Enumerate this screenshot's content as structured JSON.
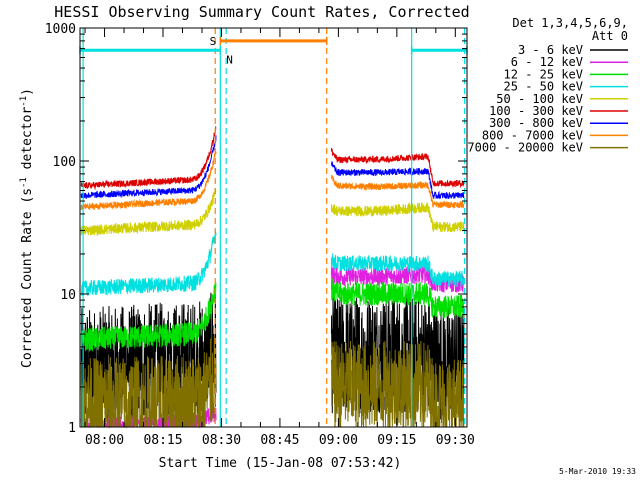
{
  "chart_data": {
    "type": "line",
    "title": "HESSI Observing Summary Count Rates, Corrected",
    "xlabel": "Start Time (15-Jan-08 07:53:42)",
    "ylabel_main": "Corrected Count Rate (s",
    "ylabel_sup1": "-1",
    "ylabel_mid": " detector",
    "ylabel_sup2": "-1",
    "ylabel_end": ")",
    "yscale": "log",
    "ylim": [
      1,
      1000
    ],
    "xlim_min": [
      473.7,
      573.0
    ],
    "xticks_min": [
      480,
      495,
      510,
      525,
      540,
      555,
      570
    ],
    "xtick_labels": [
      "08:00",
      "08:15",
      "08:30",
      "08:45",
      "09:00",
      "09:15",
      "09:30"
    ],
    "yticks": [
      1,
      10,
      100,
      1000
    ],
    "ytick_labels": [
      "1",
      "10",
      "100",
      "1000"
    ],
    "legend_header": [
      "Det 1,3,4,5,6,9,",
      "Att 0"
    ],
    "legend_position": "right-outside",
    "series": [
      {
        "name": "3 - 6 keV",
        "color": "#000000",
        "pre": [
          2.8,
          3.2,
          4.0
        ],
        "post": [
          3.5,
          3.5,
          3.6,
          3.5,
          3.0
        ],
        "noise": 0.45
      },
      {
        "name": "6 - 12 keV",
        "color": "#e020e0",
        "pre": [
          1.0,
          1.1,
          1.3
        ],
        "post": [
          14,
          13.5,
          13.5,
          14,
          12
        ],
        "noise": 0.07
      },
      {
        "name": "12 - 25 keV",
        "color": "#00e000",
        "pre": [
          4.5,
          5.0,
          12
        ],
        "post": [
          11,
          10,
          10,
          10,
          8
        ],
        "noise": 0.09
      },
      {
        "name": "25 - 50 keV",
        "color": "#00e0e0",
        "pre": [
          11,
          12,
          30
        ],
        "post": [
          18,
          17,
          17,
          17,
          13
        ],
        "noise": 0.06
      },
      {
        "name": "50 - 100 keV",
        "color": "#d0d000",
        "pre": [
          30,
          33,
          60
        ],
        "post": [
          45,
          42,
          42,
          45,
          32
        ],
        "noise": 0.04
      },
      {
        "name": "100 - 300 keV",
        "color": "#dd0000",
        "pre": [
          65,
          72,
          180
        ],
        "post": [
          120,
          102,
          103,
          108,
          68
        ],
        "noise": 0.025
      },
      {
        "name": "300 - 800 keV",
        "color": "#0000ff",
        "pre": [
          55,
          60,
          150
        ],
        "post": [
          95,
          82,
          82,
          84,
          55
        ],
        "noise": 0.025
      },
      {
        "name": "800 - 7000 keV",
        "color": "#ff7f00",
        "pre": [
          45,
          50,
          120
        ],
        "post": [
          75,
          65,
          64,
          66,
          47
        ],
        "noise": 0.025
      },
      {
        "name": "7000 - 20000 keV",
        "color": "#807000",
        "pre": [
          1.5,
          1.6,
          2.5
        ],
        "post": [
          2.0,
          2.0,
          2.0,
          2.0,
          1.5
        ],
        "noise": 0.35
      }
    ],
    "flag_bars": [
      {
        "label": "S",
        "color": "#ff7f00",
        "level": 800,
        "x_min": [
          509.7,
          537.0
        ]
      },
      {
        "label": "N",
        "color": "#00e0e0",
        "level": 680,
        "x_min": [
          473.7,
          509.7
        ]
      },
      {
        "label": "",
        "color": "#00e0e0",
        "level": 680,
        "x_min": [
          558.8,
          573.0
        ]
      }
    ],
    "vlines_dashed": [
      {
        "color": "#ff7f00",
        "x_min": [
          508.4,
          537.0
        ]
      },
      {
        "color": "#00e0e0",
        "x_min": [
          511.2,
          572.4
        ]
      }
    ],
    "vlines_solid": [
      {
        "color": "#00e0e0",
        "x_min": [
          474.5,
          509.7,
          558.8
        ]
      }
    ],
    "data_segments_min": [
      [
        474.0,
        508.6
      ],
      [
        538.2,
        572.2
      ]
    ],
    "rate_step_min": 563.0
  },
  "footer_stamp": "5-Mar-2010 19:33"
}
